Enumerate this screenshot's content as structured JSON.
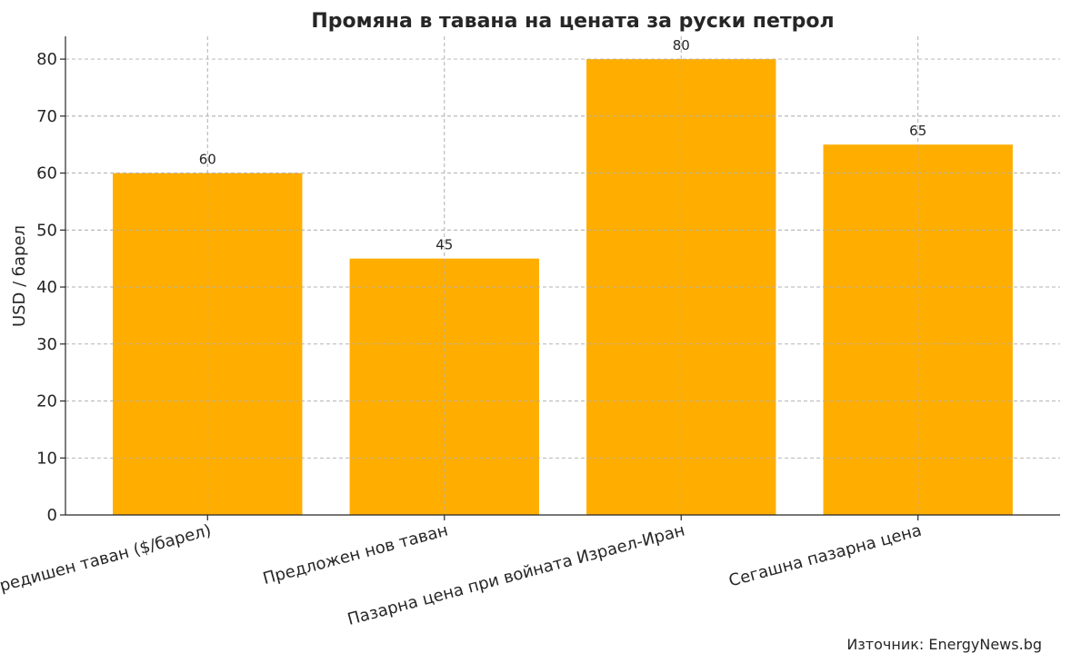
{
  "chart_data": {
    "type": "bar",
    "title": "Промяна в тавана на цената за руски петрол",
    "xlabel": "",
    "ylabel": "USD / барел",
    "categories": [
      "Предишен таван ($/барел)",
      "Предложен нов таван",
      "Пазарна цена при войната Израел-Иран",
      "Сегашна пазарна цена"
    ],
    "values": [
      60,
      45,
      80,
      65
    ],
    "data_labels": [
      "60",
      "45",
      "80",
      "65"
    ],
    "ylim": [
      0,
      84
    ],
    "yticks": [
      0,
      10,
      20,
      30,
      40,
      50,
      60,
      70,
      80
    ],
    "grid": true,
    "bar_color": "#FFAE00",
    "source": "Източник: EnergyNews.bg"
  }
}
